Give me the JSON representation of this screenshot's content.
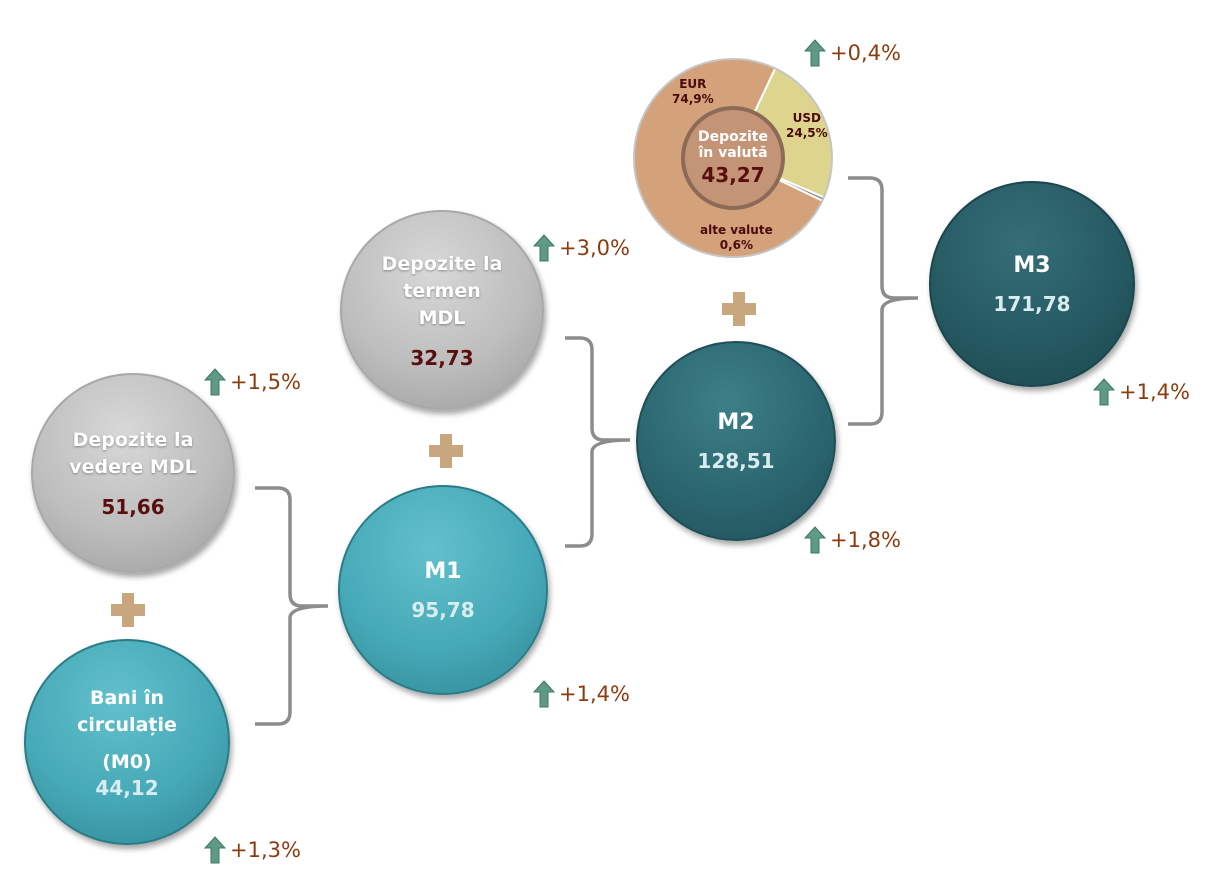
{
  "depozite_vedere": {
    "label": "Depozite la vedere MDL",
    "value": "51,66",
    "growth": "+1,5%"
  },
  "bani_circulatie": {
    "label": "Bani în circulație",
    "code": "(M0)",
    "value": "44,12",
    "growth": "+1,3%"
  },
  "m1": {
    "label": "M1",
    "value": "95,78",
    "growth": "+1,4%"
  },
  "depozite_termen": {
    "label": "Depozite la termen MDL",
    "value": "32,73",
    "growth": "+3,0%"
  },
  "m2": {
    "label": "M2",
    "value": "128,51",
    "growth": "+1,8%"
  },
  "depozite_valuta": {
    "label": "Depozite în valută",
    "value": "43,27",
    "growth": "+0,4%",
    "slices": [
      {
        "name": "EUR",
        "pct": "74,9%",
        "share": 74.9,
        "color": "#d3a27a"
      },
      {
        "name": "USD",
        "pct": "24,5%",
        "share": 24.5,
        "color": "#ddd48e"
      },
      {
        "name": "alte valute",
        "pct": "0,6%",
        "share": 0.6,
        "color": "#8a8a8a"
      }
    ]
  },
  "m3": {
    "label": "M3",
    "value": "171,78",
    "growth": "+1,4%"
  },
  "colors": {
    "growth_text": "#8a3c0e",
    "arrow": "#5f9a86",
    "value_dark": "#5a0f0f",
    "bracket": "#8c8c8c",
    "plus": "#c8a67e"
  }
}
